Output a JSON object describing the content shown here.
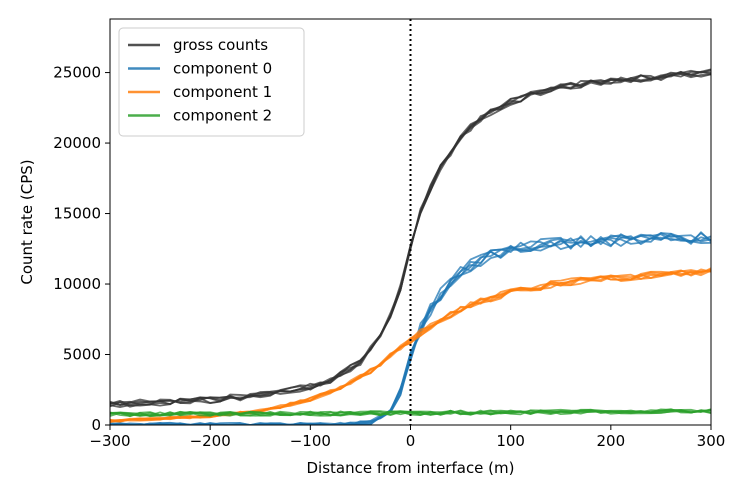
{
  "chart_data": {
    "type": "line",
    "title": "",
    "xlabel": "Distance from interface (m)",
    "ylabel": "Count rate (CPS)",
    "xlim": [
      -300,
      300
    ],
    "ylim": [
      0,
      28800
    ],
    "xticks": [
      -300,
      -200,
      -100,
      0,
      100,
      200,
      300
    ],
    "xtick_labels": [
      "−300",
      "−200",
      "−100",
      "0",
      "100",
      "200",
      "300"
    ],
    "yticks": [
      0,
      5000,
      10000,
      15000,
      20000,
      25000
    ],
    "ytick_labels": [
      "0",
      "5000",
      "10000",
      "15000",
      "20000",
      "25000"
    ],
    "grid": false,
    "legend_position": "top-left",
    "vline": {
      "x": 0,
      "style": "dotted",
      "color": "#000000"
    },
    "traces_per_series": 6,
    "series": [
      {
        "name": "gross counts",
        "color": "#333333",
        "x": [
          -300,
          -250,
          -200,
          -150,
          -100,
          -75,
          -50,
          -30,
          -20,
          -10,
          -5,
          0,
          10,
          25,
          50,
          75,
          100,
          125,
          150,
          200,
          250,
          300
        ],
        "values": [
          1500,
          1600,
          1800,
          2100,
          2700,
          3300,
          4500,
          6200,
          7800,
          9800,
          11200,
          12600,
          15200,
          17600,
          20500,
          22000,
          22900,
          23500,
          24000,
          24400,
          24700,
          25000
        ],
        "noise": 250
      },
      {
        "name": "component 0",
        "color": "#1f77b4",
        "x": [
          -300,
          -200,
          -100,
          -60,
          -40,
          -25,
          -15,
          -5,
          0,
          10,
          25,
          50,
          75,
          100,
          125,
          150,
          200,
          250,
          300
        ],
        "values": [
          0,
          0,
          0,
          50,
          200,
          700,
          1500,
          3300,
          4800,
          6800,
          8900,
          10900,
          11900,
          12400,
          12700,
          12900,
          13100,
          13200,
          13300
        ],
        "noise": 450
      },
      {
        "name": "component 1",
        "color": "#ff7f0e",
        "x": [
          -300,
          -250,
          -200,
          -150,
          -100,
          -75,
          -50,
          -30,
          -15,
          0,
          15,
          30,
          50,
          75,
          100,
          150,
          200,
          250,
          300
        ],
        "values": [
          300,
          450,
          650,
          1000,
          1800,
          2500,
          3400,
          4300,
          5200,
          6000,
          6800,
          7500,
          8200,
          8900,
          9400,
          10100,
          10400,
          10700,
          10900
        ],
        "noise": 250
      },
      {
        "name": "component 2",
        "color": "#2ca02c",
        "x": [
          -300,
          -200,
          -100,
          0,
          100,
          200,
          300
        ],
        "values": [
          750,
          800,
          800,
          850,
          900,
          950,
          1000
        ],
        "noise": 350
      }
    ]
  }
}
